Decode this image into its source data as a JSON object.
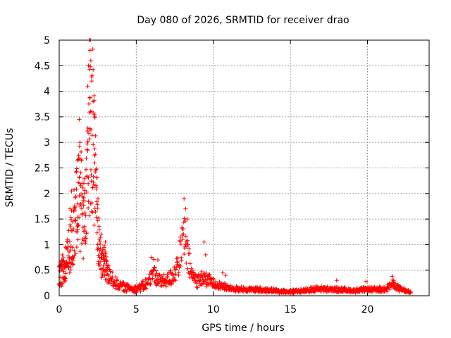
{
  "chart_data": {
    "type": "scatter",
    "title": "Day 080 of 2026, SRMTID for receiver drao",
    "xlabel": "GPS time / hours",
    "ylabel": "SRMTID / TECUs",
    "xlim": [
      0,
      24
    ],
    "ylim": [
      0,
      5
    ],
    "xticks": [
      0,
      5,
      10,
      15,
      20
    ],
    "yticks": [
      0,
      0.5,
      1,
      1.5,
      2,
      2.5,
      3,
      3.5,
      4,
      4.5,
      5
    ],
    "ytick_labels": [
      "0",
      "0.5",
      "1",
      "1.5",
      "2",
      "2.5",
      "3",
      "3.5",
      "4",
      "4.5",
      "5"
    ],
    "grid": true,
    "marker": "plus",
    "color": "#ff0000",
    "series": [
      {
        "name": "SRMTID",
        "profile": [
          [
            0.0,
            0.4
          ],
          [
            0.2,
            0.45
          ],
          [
            0.4,
            0.55
          ],
          [
            0.6,
            0.8
          ],
          [
            0.8,
            1.1
          ],
          [
            1.0,
            1.4
          ],
          [
            1.2,
            2.0
          ],
          [
            1.4,
            1.9
          ],
          [
            1.6,
            1.4
          ],
          [
            1.8,
            2.6
          ],
          [
            2.0,
            3.6
          ],
          [
            2.2,
            3.2
          ],
          [
            2.4,
            1.8
          ],
          [
            2.6,
            0.9
          ],
          [
            2.8,
            0.7
          ],
          [
            3.0,
            0.6
          ],
          [
            3.2,
            0.4
          ],
          [
            3.5,
            0.3
          ],
          [
            3.8,
            0.22
          ],
          [
            4.2,
            0.17
          ],
          [
            4.6,
            0.15
          ],
          [
            5.0,
            0.14
          ],
          [
            5.5,
            0.2
          ],
          [
            5.9,
            0.3
          ],
          [
            6.1,
            0.55
          ],
          [
            6.3,
            0.35
          ],
          [
            6.6,
            0.28
          ],
          [
            7.0,
            0.3
          ],
          [
            7.4,
            0.4
          ],
          [
            7.8,
            0.7
          ],
          [
            8.1,
            1.2
          ],
          [
            8.3,
            0.8
          ],
          [
            8.6,
            0.4
          ],
          [
            9.0,
            0.3
          ],
          [
            9.3,
            0.35
          ],
          [
            9.6,
            0.3
          ],
          [
            10.0,
            0.25
          ],
          [
            10.5,
            0.2
          ],
          [
            11.0,
            0.15
          ],
          [
            12.0,
            0.12
          ],
          [
            13.0,
            0.12
          ],
          [
            14.0,
            0.1
          ],
          [
            15.0,
            0.08
          ],
          [
            16.0,
            0.1
          ],
          [
            16.8,
            0.14
          ],
          [
            17.5,
            0.12
          ],
          [
            18.2,
            0.12
          ],
          [
            19.0,
            0.1
          ],
          [
            20.0,
            0.12
          ],
          [
            21.0,
            0.12
          ],
          [
            21.6,
            0.22
          ],
          [
            22.2,
            0.12
          ],
          [
            22.8,
            0.06
          ]
        ],
        "peaks": [
          [
            0.2,
            0.8
          ],
          [
            0.4,
            0.95
          ],
          [
            0.7,
            1.7
          ],
          [
            0.8,
            2.05
          ],
          [
            1.2,
            2.65
          ],
          [
            1.3,
            3.45
          ],
          [
            1.35,
            3.0
          ],
          [
            1.6,
            2.2
          ],
          [
            1.85,
            4.1
          ],
          [
            1.9,
            4.5
          ],
          [
            2.0,
            4.8
          ],
          [
            2.05,
            4.6
          ],
          [
            2.1,
            4.2
          ],
          [
            2.2,
            3.8
          ],
          [
            2.3,
            3.5
          ],
          [
            2.3,
            2.6
          ],
          [
            2.5,
            1.0
          ],
          [
            3.0,
            1.05
          ],
          [
            6.0,
            0.75
          ],
          [
            6.4,
            0.7
          ],
          [
            8.1,
            1.9
          ],
          [
            8.2,
            1.7
          ],
          [
            8.3,
            1.5
          ],
          [
            9.4,
            1.05
          ],
          [
            9.5,
            0.8
          ],
          [
            10.6,
            0.45
          ],
          [
            10.8,
            0.4
          ],
          [
            16.0,
            0.15
          ],
          [
            18.0,
            0.3
          ],
          [
            19.9,
            0.28
          ],
          [
            21.6,
            0.38
          ],
          [
            21.7,
            0.3
          ]
        ]
      }
    ]
  }
}
